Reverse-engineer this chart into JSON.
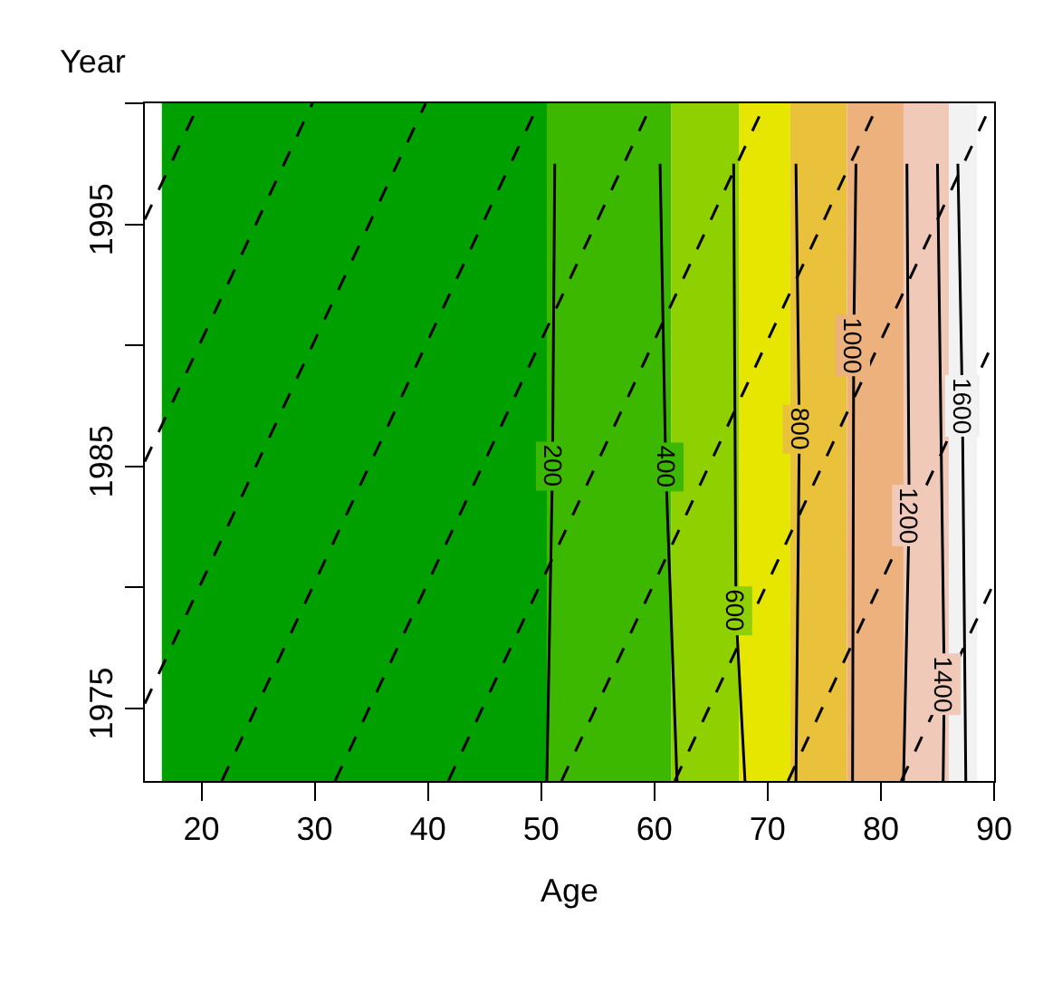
{
  "chart_data": {
    "type": "line",
    "xlabel": "Age",
    "ylabel": "Year",
    "xlim": [
      15,
      90
    ],
    "xticks": [
      20,
      30,
      40,
      50,
      60,
      70,
      80,
      90
    ],
    "ylim": [
      1972,
      2000
    ],
    "yticks": [
      1975,
      {
        "value": 1980,
        "label": null
      },
      1985,
      {
        "value": 1990,
        "label": null
      },
      1995,
      {
        "value": 2000,
        "label": null
      }
    ],
    "grid": false,
    "legend": false,
    "bands": [
      {
        "axis": "x",
        "from": 16.5,
        "to": 50.5,
        "color": "#00a000"
      },
      {
        "axis": "x",
        "from": 50.5,
        "to": 61.5,
        "color": "#3db800"
      },
      {
        "axis": "x",
        "from": 61.5,
        "to": 67.5,
        "color": "#8fd000"
      },
      {
        "axis": "x",
        "from": 67.5,
        "to": 72,
        "color": "#e6e600"
      },
      {
        "axis": "x",
        "from": 72,
        "to": 77,
        "color": "#e9c13a"
      },
      {
        "axis": "x",
        "from": 77,
        "to": 82,
        "color": "#ecb17d"
      },
      {
        "axis": "x",
        "from": 82,
        "to": 86,
        "color": "#f1c9b9"
      },
      {
        "axis": "x",
        "from": 86,
        "to": 88.5,
        "color": "#f2f2f2"
      }
    ],
    "series": [
      {
        "name": "200",
        "color": "#000000",
        "line_style": "solid",
        "x": [
          50.5,
          51,
          51.2
        ],
        "values": [
          1972,
          1985,
          1997.5
        ]
      },
      {
        "name": "400",
        "color": "#000000",
        "line_style": "solid",
        "x": [
          62,
          61,
          60.5
        ],
        "values": [
          1972,
          1985,
          1997.5
        ]
      },
      {
        "name": "600",
        "color": "#000000",
        "line_style": "solid",
        "x": [
          68,
          67.2,
          67
        ],
        "values": [
          1972,
          1979,
          1997.5
        ]
      },
      {
        "name": "800",
        "color": "#000000",
        "line_style": "solid",
        "x": [
          72.5,
          72.8,
          72.5
        ],
        "values": [
          1972,
          1986.5,
          1997.5
        ]
      },
      {
        "name": "1000",
        "color": "#000000",
        "line_style": "solid",
        "x": [
          77.5,
          77.6,
          77.8
        ],
        "values": [
          1972,
          1990,
          1997.5
        ]
      },
      {
        "name": "1200",
        "color": "#000000",
        "line_style": "solid",
        "x": [
          82,
          82.5,
          82.3
        ],
        "values": [
          1972,
          1983,
          1997.5
        ]
      },
      {
        "name": "1400",
        "color": "#000000",
        "line_style": "solid",
        "x": [
          85.5,
          85.6,
          85
        ],
        "values": [
          1972,
          1976,
          1997.5
        ]
      },
      {
        "name": "1600",
        "color": "#000000",
        "line_style": "solid",
        "x": [
          87.5,
          87.2,
          86.8
        ],
        "values": [
          1972,
          1987.5,
          1997.5
        ]
      },
      {
        "color": "#000000",
        "line_style": "dashed",
        "x": [
          15,
          19.8
        ],
        "values": [
          1995.2,
          2000
        ]
      },
      {
        "color": "#000000",
        "line_style": "dashed",
        "x": [
          15,
          29.8
        ],
        "values": [
          1985.2,
          2000
        ]
      },
      {
        "color": "#000000",
        "line_style": "dashed",
        "x": [
          15,
          39.8
        ],
        "values": [
          1975.2,
          2000
        ]
      },
      {
        "color": "#000000",
        "line_style": "dashed",
        "x": [
          21.8,
          49.8
        ],
        "values": [
          1972,
          2000
        ]
      },
      {
        "color": "#000000",
        "line_style": "dashed",
        "x": [
          31.8,
          59.8
        ],
        "values": [
          1972,
          2000
        ]
      },
      {
        "color": "#000000",
        "line_style": "dashed",
        "x": [
          41.8,
          69.8
        ],
        "values": [
          1972,
          2000
        ]
      },
      {
        "color": "#000000",
        "line_style": "dashed",
        "x": [
          51.8,
          79.8
        ],
        "values": [
          1972,
          2000
        ]
      },
      {
        "color": "#000000",
        "line_style": "dashed",
        "x": [
          61.8,
          89.8
        ],
        "values": [
          1972,
          2000
        ]
      },
      {
        "color": "#000000",
        "line_style": "dashed",
        "x": [
          71.8,
          89.8
        ],
        "values": [
          1972,
          1990
        ]
      },
      {
        "color": "#000000",
        "line_style": "dashed",
        "x": [
          81.8,
          89.8
        ],
        "values": [
          1972,
          1980
        ]
      }
    ]
  }
}
